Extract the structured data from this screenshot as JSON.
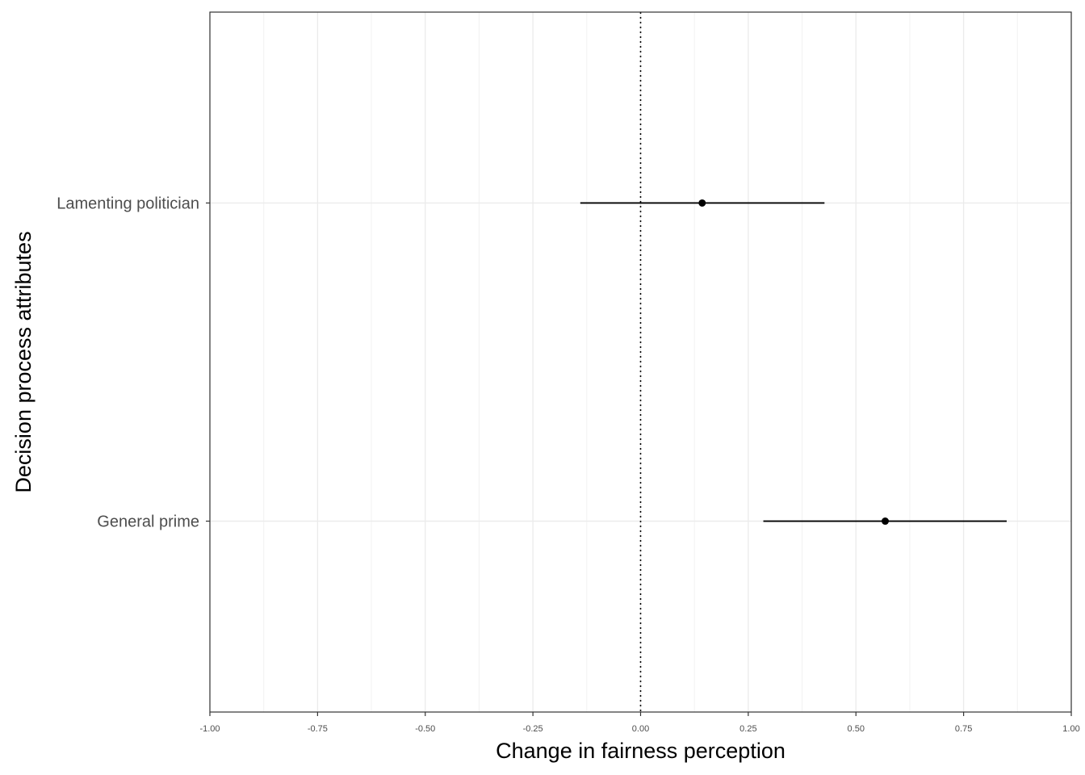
{
  "chart_data": {
    "type": "scatter",
    "xlabel": "Change in fairness perception",
    "ylabel": "Decision process attributes",
    "xlim": [
      -1.0,
      1.0
    ],
    "x_ticks": [
      -1.0,
      -0.75,
      -0.5,
      -0.25,
      0.0,
      0.25,
      0.5,
      0.75,
      1.0
    ],
    "x_tick_labels": [
      "-1.00",
      "-0.75",
      "-0.50",
      "-0.25",
      "0.00",
      "0.25",
      "0.50",
      "0.75",
      "1.00"
    ],
    "categories": [
      "Lamenting politician",
      "General prime"
    ],
    "points": [
      {
        "category": "Lamenting politician",
        "estimate": 0.143,
        "ci_low": -0.14,
        "ci_high": 0.427
      },
      {
        "category": "General prime",
        "estimate": 0.568,
        "ci_low": 0.285,
        "ci_high": 0.85
      }
    ],
    "reference_line": {
      "x": 0.0,
      "style": "dotted"
    },
    "grid": true,
    "legend": "none",
    "colors": {
      "point": "#000000",
      "grid": "#ebebeb",
      "frame": "#333333"
    }
  }
}
